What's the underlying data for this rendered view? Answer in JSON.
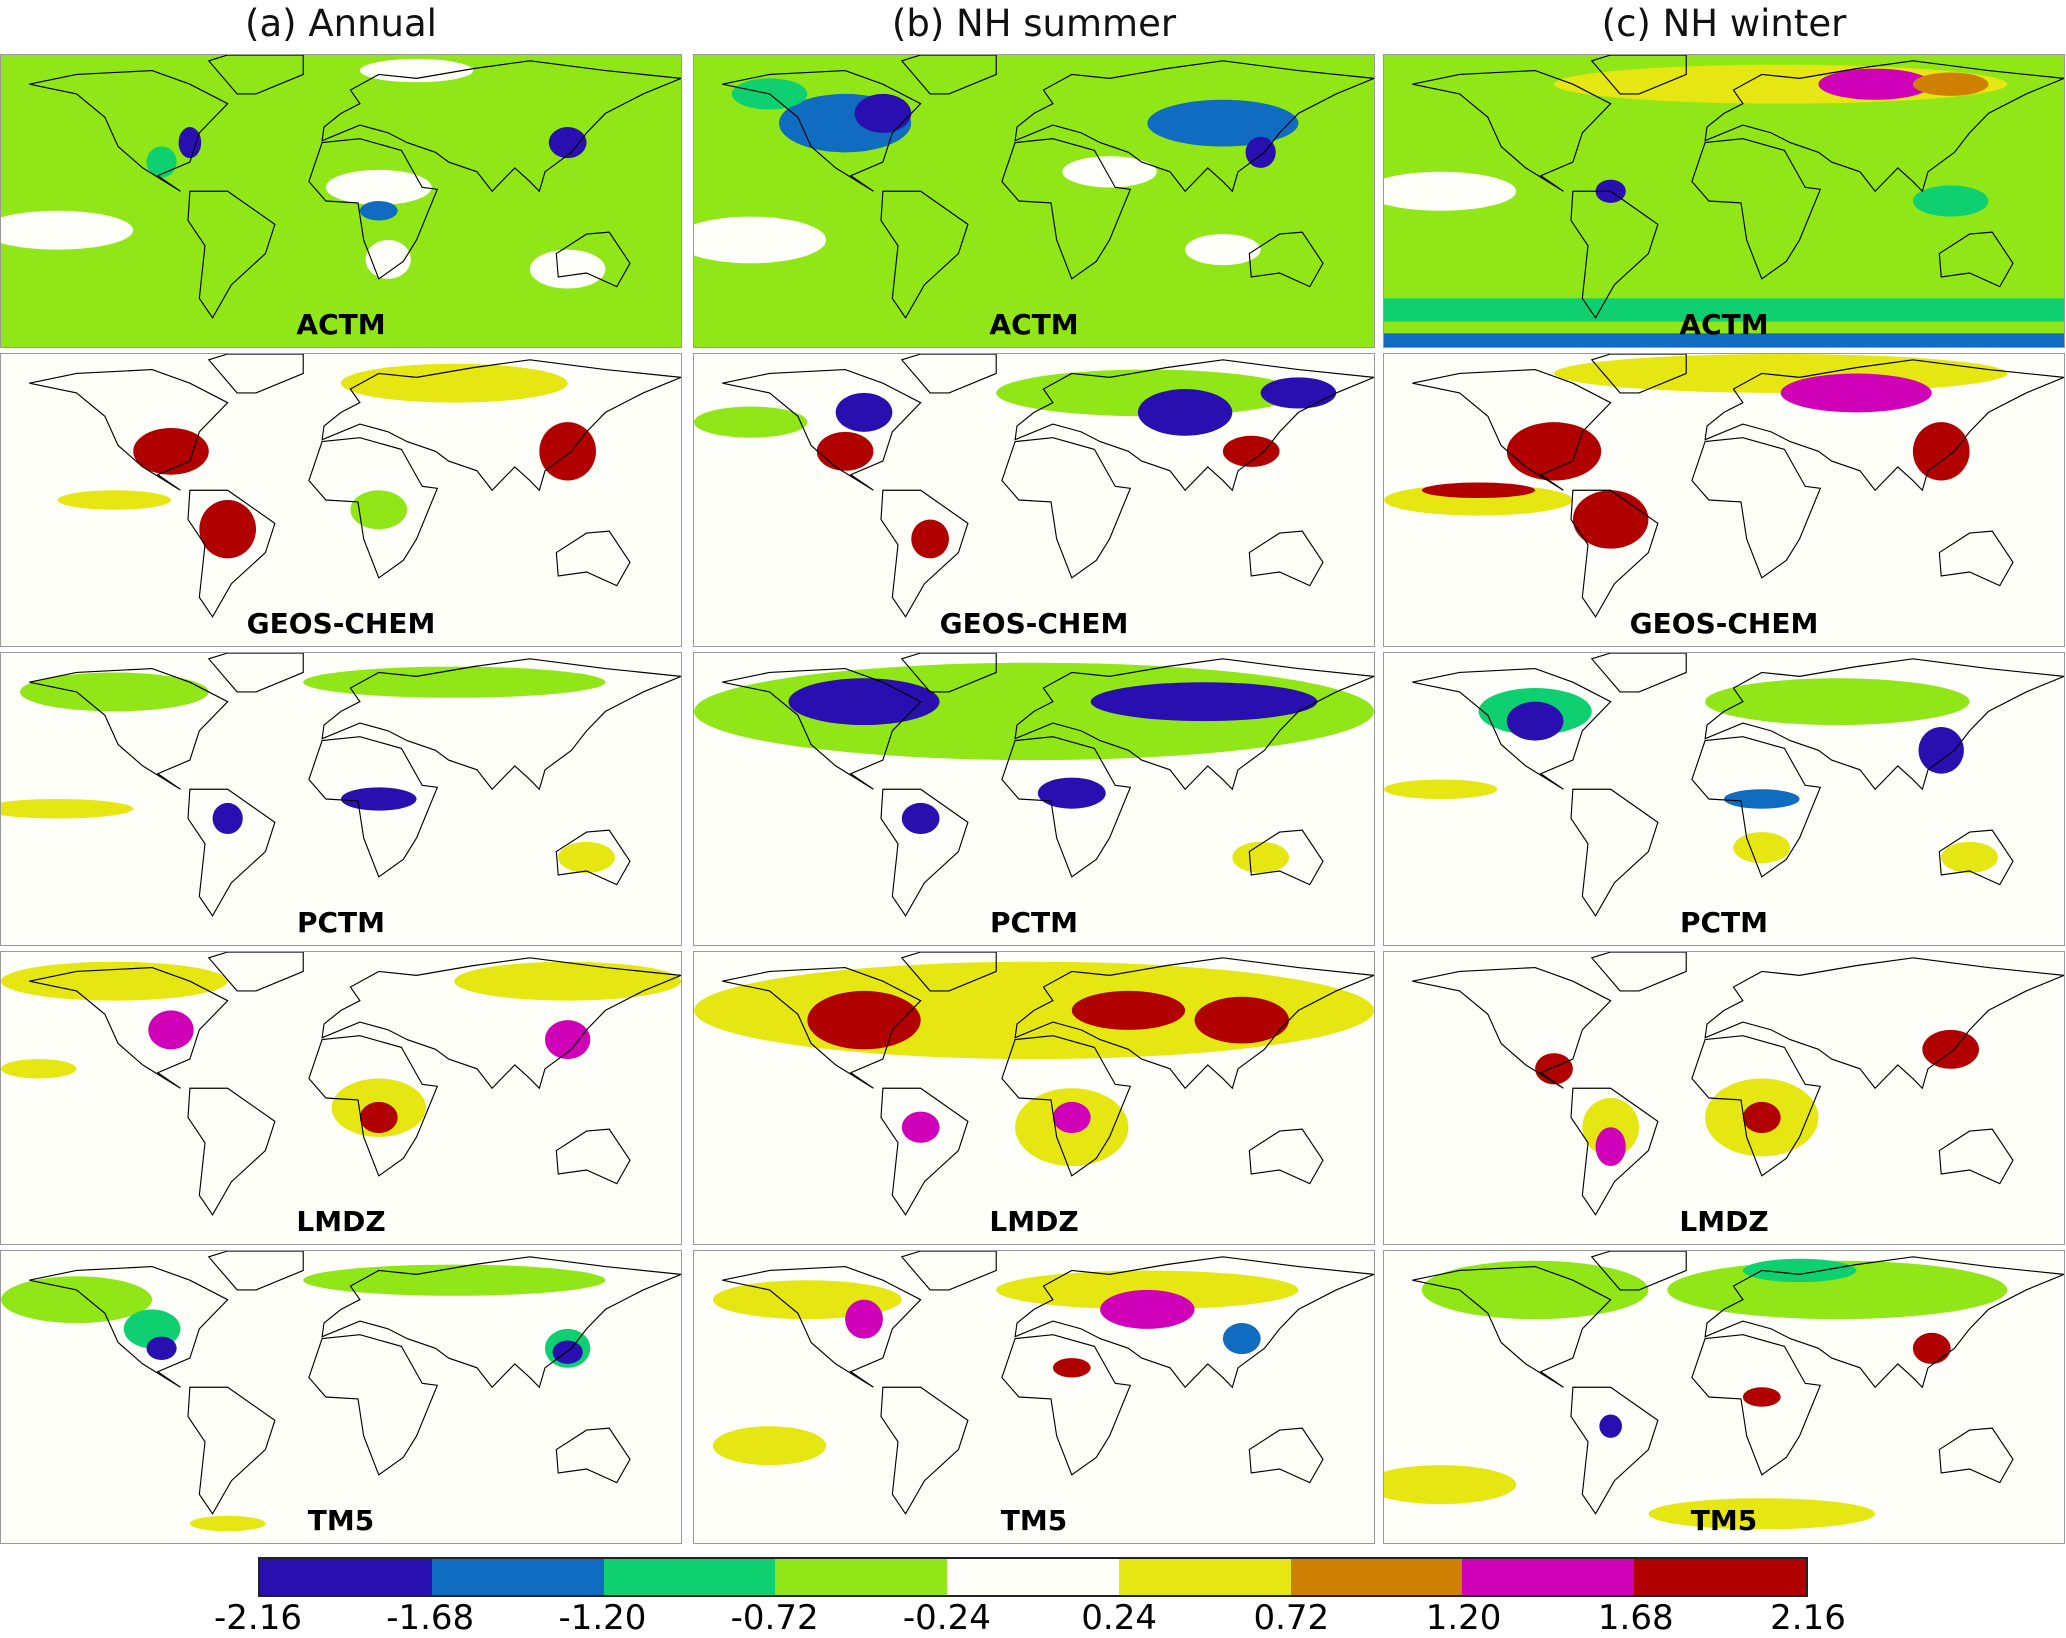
{
  "columns": [
    {
      "title": "(a) Annual"
    },
    {
      "title": "(b) NH summer"
    },
    {
      "title": "(c) NH winter"
    }
  ],
  "models": [
    "ACTM",
    "GEOS-CHEM",
    "PCTM",
    "LMDZ",
    "TM5"
  ],
  "colorbar": {
    "colors": [
      "#2a0fb0",
      "#0f6cc0",
      "#0fd070",
      "#90e616",
      "#fffffa",
      "#e6e612",
      "#d08000",
      "#d000b8",
      "#b00000"
    ],
    "ticks": [
      "-2.16",
      "-1.68",
      "-1.20",
      "-0.72",
      "-0.24",
      "0.24",
      "0.72",
      "1.20",
      "1.68",
      "2.16"
    ]
  }
}
